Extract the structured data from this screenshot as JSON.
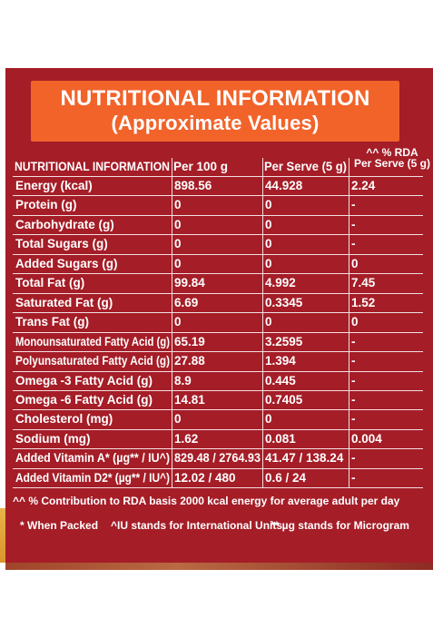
{
  "banner": {
    "title": "NUTRITIONAL INFORMATION",
    "subtitle": "(Approximate Values)"
  },
  "table": {
    "headers": [
      "NUTRITIONAL INFORMATION",
      "Per 100 g",
      "Per Serve (5 g)"
    ],
    "rda_header_line1": "^^ % RDA",
    "rda_header_line2": "Per Serve (5 g)",
    "rows": [
      [
        "Energy (kcal)",
        "898.56",
        "44.928",
        "2.24"
      ],
      [
        "Protein (g)",
        "0",
        "0",
        "-"
      ],
      [
        "Carbohydrate (g)",
        "0",
        "0",
        "-"
      ],
      [
        "Total Sugars (g)",
        "0",
        "0",
        "-"
      ],
      [
        "Added Sugars (g)",
        "0",
        "0",
        "0"
      ],
      [
        "Total Fat (g)",
        "99.84",
        "4.992",
        "7.45"
      ],
      [
        "Saturated Fat (g)",
        "6.69",
        "0.3345",
        "1.52"
      ],
      [
        "Trans Fat (g)",
        "0",
        "0",
        "0"
      ],
      [
        "Monounsaturated Fatty Acid (g)",
        "65.19",
        "3.2595",
        "-"
      ],
      [
        "Polyunsaturated Fatty Acid (g)",
        "27.88",
        "1.394",
        "-"
      ],
      [
        "Omega -3 Fatty Acid (g)",
        "8.9",
        "0.445",
        "-"
      ],
      [
        "Omega -6 Fatty Acid (g)",
        "14.81",
        "0.7405",
        "-"
      ],
      [
        "Cholesterol (mg)",
        "0",
        "0",
        "-"
      ],
      [
        "Sodium (mg)",
        "1.62",
        "0.081",
        "0.004"
      ],
      [
        "Added Vitamin A* (µg** / IU^)",
        "829.48 / 2764.93",
        "41.47 / 138.24",
        "-"
      ],
      [
        "Added Vitamin D2* (µg** / IU^)",
        "12.02 / 480",
        "0.6 / 24",
        "-"
      ]
    ]
  },
  "footnotes": {
    "rda_note": "^^ % Contribution to RDA basis 2000 kcal energy for average adult per day",
    "when_packed": "* When Packed",
    "iu_note": "^IU stands for International Units",
    "microgram_note": "** µg stands for Microgram"
  },
  "colors": {
    "panel": "#a51d27",
    "banner": "#f2632a",
    "text": "#ffffff"
  }
}
